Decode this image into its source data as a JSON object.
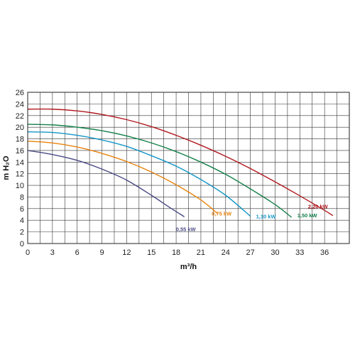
{
  "chart_data": {
    "type": "line",
    "xlabel": "m³/h",
    "ylabel": "m H₂O",
    "xlim": [
      0,
      39
    ],
    "ylim": [
      0,
      26
    ],
    "xticks": [
      0,
      3,
      6,
      9,
      12,
      15,
      18,
      21,
      24,
      27,
      30,
      33,
      36
    ],
    "yticks": [
      0,
      2,
      4,
      6,
      8,
      10,
      12,
      14,
      16,
      18,
      20,
      22,
      24,
      26
    ],
    "grid": true,
    "legend": "none",
    "series": [
      {
        "name": "0,55 kW",
        "color": "#4a4a86",
        "x": [
          0,
          3,
          6,
          9,
          12,
          15,
          17,
          19
        ],
        "y": [
          16.0,
          15.3,
          14.3,
          12.8,
          10.9,
          8.3,
          6.4,
          4.6
        ]
      },
      {
        "name": "0,75 kW",
        "color": "#e8820c",
        "x": [
          0,
          3,
          6,
          9,
          12,
          15,
          18,
          21,
          23
        ],
        "y": [
          17.6,
          17.3,
          16.6,
          15.5,
          14.1,
          12.3,
          10.1,
          7.5,
          5.2
        ]
      },
      {
        "name": "1,10 kW",
        "color": "#1496c8",
        "x": [
          0,
          3,
          6,
          9,
          12,
          15,
          18,
          21,
          24,
          27
        ],
        "y": [
          19.2,
          19.1,
          18.6,
          17.8,
          16.7,
          15.1,
          13.3,
          11.0,
          8.3,
          4.7
        ]
      },
      {
        "name": "1,50 kW",
        "color": "#14804a",
        "x": [
          0,
          3,
          6,
          9,
          12,
          15,
          18,
          21,
          24,
          27,
          30,
          32
        ],
        "y": [
          20.5,
          20.4,
          20.0,
          19.4,
          18.5,
          17.3,
          15.8,
          14.0,
          11.9,
          9.4,
          6.7,
          4.5
        ]
      },
      {
        "name": "2,20 kW",
        "color": "#b0181e",
        "x": [
          0,
          3,
          6,
          9,
          12,
          15,
          18,
          21,
          24,
          27,
          30,
          33,
          36,
          37
        ],
        "y": [
          23.1,
          23.1,
          22.8,
          22.2,
          21.3,
          20.1,
          18.6,
          16.9,
          15.0,
          12.9,
          10.6,
          8.2,
          5.7,
          4.8
        ]
      }
    ],
    "series_label_text": {
      "0,55 kW": "0,55 kW",
      "0,75 kW": "0,75 kW",
      "1,10 kW": "1,10 kW",
      "1,50 kW": "1,50 kW",
      "2,20 kW": "2,20 kW"
    }
  }
}
